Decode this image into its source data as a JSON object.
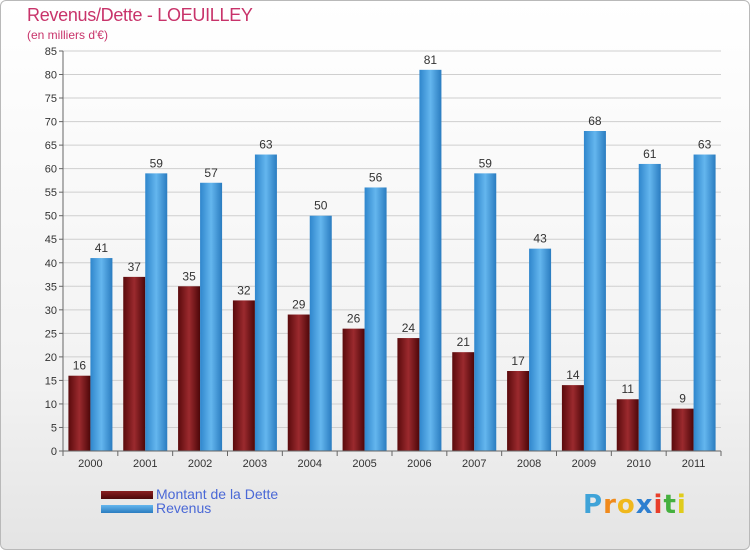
{
  "header": {
    "title": "Revenus/Dette - LOEUILLEY",
    "subtitle": "(en milliers d'€)"
  },
  "chart_data": {
    "type": "bar",
    "title": "Revenus/Dette - LOEUILLEY",
    "subtitle": "(en milliers d'€)",
    "xlabel": "",
    "ylabel": "",
    "categories": [
      "2000",
      "2001",
      "2002",
      "2003",
      "2004",
      "2005",
      "2006",
      "2007",
      "2008",
      "2009",
      "2010",
      "2011"
    ],
    "series": [
      {
        "name": "Montant de la Dette",
        "values": [
          16,
          37,
          35,
          32,
          29,
          26,
          24,
          21,
          17,
          14,
          11,
          9
        ],
        "color": "#7a1516"
      },
      {
        "name": "Revenus",
        "values": [
          41,
          59,
          57,
          63,
          50,
          56,
          81,
          59,
          43,
          68,
          61,
          63
        ],
        "color": "#4a9fe0"
      }
    ],
    "ylim": [
      0,
      85
    ],
    "yticks": [
      0,
      5,
      10,
      15,
      20,
      25,
      30,
      35,
      40,
      45,
      50,
      55,
      60,
      65,
      70,
      75,
      80,
      85
    ],
    "grid": true,
    "data_labels": true,
    "legend_position": "bottom-left"
  },
  "legend": {
    "items": [
      {
        "label": "Montant de la Dette",
        "color": "#7a1516"
      },
      {
        "label": "Revenus",
        "color": "#4a9fe0"
      }
    ]
  },
  "logo": {
    "letters": [
      "P",
      "r",
      "o",
      "x",
      "i",
      "t",
      "i"
    ],
    "colors": [
      "#3fa3d8",
      "#f08a1c",
      "#f0b81c",
      "#2e7fd0",
      "#e83e2a",
      "#46b03f",
      "#e0cc1c"
    ]
  },
  "colors": {
    "title": "#c8336a",
    "legend_text": "#4a68d6",
    "axis_text": "#333333",
    "grid": "#cfcfcf"
  }
}
